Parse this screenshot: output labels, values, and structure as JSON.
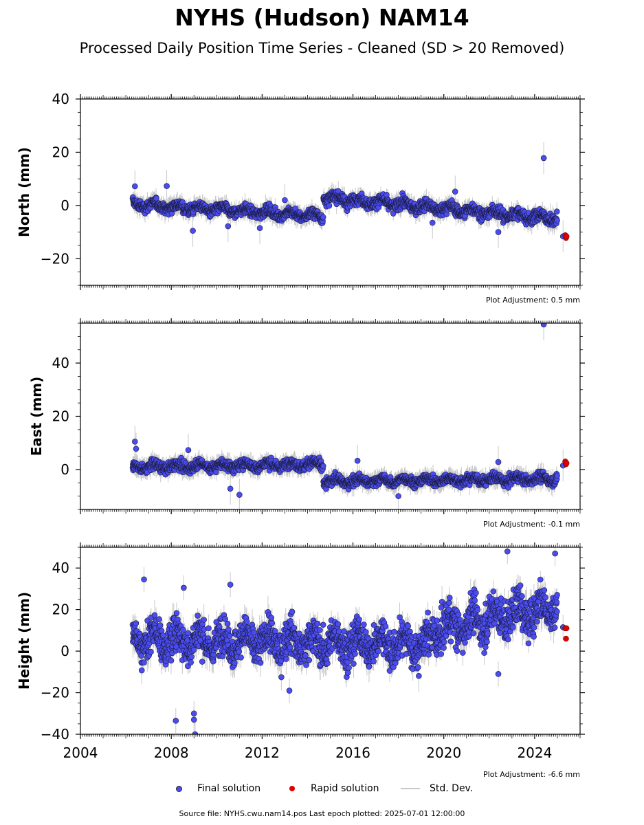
{
  "title": "NYHS (Hudson) NAM14",
  "subtitle": "Processed Daily Position Time Series - Cleaned (SD > 20 Removed)",
  "source_note": "Source file: NYHS.cwu.nam14.pos  Last epoch plotted: 2025-07-01 12:00:00",
  "legend": {
    "final": "Final solution",
    "rapid": "Rapid solution",
    "std": "Std. Dev."
  },
  "colors": {
    "final": "#4a4cf0",
    "rapid": "#e00000",
    "std_dev": "#c8c8c8"
  },
  "chart_data": [
    {
      "type": "scatter",
      "panel": "north",
      "ylabel": "North (mm)",
      "xlim": [
        2004,
        2026
      ],
      "ylim": [
        -30,
        40
      ],
      "yticks": [
        -20,
        0,
        20,
        40
      ],
      "xticks": [
        2004,
        2008,
        2012,
        2016,
        2020,
        2024
      ],
      "x_tick_labels_shown": false,
      "adjustment": "Plot Adjustment: 0.5 mm",
      "series": [
        {
          "name": "Final solution",
          "segments": [
            {
              "x0": 2006.3,
              "x1": 2014.7,
              "y0": 0.5,
              "y1": -4.0,
              "spread": 1.6,
              "err": 3
            },
            {
              "x0": 2014.7,
              "x1": 2025.0,
              "y0": 3.0,
              "y1": -5.0,
              "spread": 1.8,
              "err": 3
            }
          ],
          "outliers": [
            {
              "x": 2006.4,
              "y": 7.2
            },
            {
              "x": 2007.8,
              "y": 7.3
            },
            {
              "x": 2008.95,
              "y": -9.5
            },
            {
              "x": 2010.5,
              "y": -7.8
            },
            {
              "x": 2013.0,
              "y": 2.0
            },
            {
              "x": 2011.9,
              "y": -8.5
            },
            {
              "x": 2019.5,
              "y": -6.5
            },
            {
              "x": 2020.5,
              "y": 5.2
            },
            {
              "x": 2022.4,
              "y": -10.0
            },
            {
              "x": 2024.4,
              "y": 17.8
            },
            {
              "x": 2025.25,
              "y": -11.6
            }
          ]
        },
        {
          "name": "Rapid solution",
          "points": [
            {
              "x": 2025.35,
              "y": -11.2
            },
            {
              "x": 2025.38,
              "y": -12.2
            },
            {
              "x": 2025.4,
              "y": -11.6
            }
          ]
        }
      ]
    },
    {
      "type": "scatter",
      "panel": "east",
      "ylabel": "East (mm)",
      "xlim": [
        2004,
        2026
      ],
      "ylim": [
        -15,
        55
      ],
      "yticks": [
        0,
        20,
        40
      ],
      "xticks": [
        2004,
        2008,
        2012,
        2016,
        2020,
        2024
      ],
      "x_tick_labels_shown": false,
      "adjustment": "Plot Adjustment: -0.1 mm",
      "series": [
        {
          "name": "Final solution",
          "segments": [
            {
              "x0": 2006.3,
              "x1": 2014.7,
              "y0": 1.0,
              "y1": 2.0,
              "spread": 1.6,
              "err": 3
            },
            {
              "x0": 2014.7,
              "x1": 2025.0,
              "y0": -4.5,
              "y1": -3.5,
              "spread": 1.5,
              "err": 3
            }
          ],
          "outliers": [
            {
              "x": 2006.4,
              "y": 10.5
            },
            {
              "x": 2006.45,
              "y": 7.8
            },
            {
              "x": 2008.75,
              "y": 7.3
            },
            {
              "x": 2010.6,
              "y": -7.2
            },
            {
              "x": 2011.0,
              "y": -9.5
            },
            {
              "x": 2016.2,
              "y": 3.3
            },
            {
              "x": 2018.0,
              "y": -10.0
            },
            {
              "x": 2022.4,
              "y": 2.8
            },
            {
              "x": 2024.4,
              "y": 54.5
            },
            {
              "x": 2025.25,
              "y": 1.5
            }
          ]
        },
        {
          "name": "Rapid solution",
          "points": [
            {
              "x": 2025.35,
              "y": 3.0
            },
            {
              "x": 2025.38,
              "y": 2.0
            },
            {
              "x": 2025.4,
              "y": 2.4
            }
          ]
        }
      ]
    },
    {
      "type": "scatter",
      "panel": "height",
      "ylabel": "Height (mm)",
      "xlim": [
        2004,
        2026
      ],
      "ylim": [
        -40,
        50
      ],
      "yticks": [
        -40,
        -20,
        0,
        20,
        40
      ],
      "xticks": [
        2004,
        2008,
        2012,
        2016,
        2020,
        2024
      ],
      "x_tick_labels": [
        "2004",
        "2008",
        "2012",
        "2016",
        "2020",
        "2024"
      ],
      "x_tick_labels_shown": true,
      "adjustment": "Plot Adjustment: -6.6 mm",
      "series": [
        {
          "name": "Final solution",
          "segments": [
            {
              "x0": 2006.3,
              "x1": 2019.5,
              "y0": 6.0,
              "y1": 3.0,
              "spread": 7.5,
              "err": 6
            },
            {
              "x0": 2019.5,
              "x1": 2025.0,
              "y0": 10.0,
              "y1": 22.0,
              "spread": 8.0,
              "err": 6
            }
          ],
          "outliers": [
            {
              "x": 2006.8,
              "y": 34.5
            },
            {
              "x": 2008.2,
              "y": -33.5
            },
            {
              "x": 2008.55,
              "y": 30.5
            },
            {
              "x": 2009.0,
              "y": -30.0
            },
            {
              "x": 2009.0,
              "y": -33.0
            },
            {
              "x": 2009.05,
              "y": -40.0
            },
            {
              "x": 2010.6,
              "y": 32.0
            },
            {
              "x": 2013.2,
              "y": -19.0
            },
            {
              "x": 2022.4,
              "y": -11.0
            },
            {
              "x": 2022.8,
              "y": 48.0
            },
            {
              "x": 2024.9,
              "y": 47.0
            },
            {
              "x": 2025.25,
              "y": 11.5
            }
          ]
        },
        {
          "name": "Rapid solution",
          "points": [
            {
              "x": 2025.35,
              "y": 11.0
            },
            {
              "x": 2025.38,
              "y": 6.0
            },
            {
              "x": 2025.4,
              "y": 11.0
            }
          ]
        }
      ]
    }
  ]
}
